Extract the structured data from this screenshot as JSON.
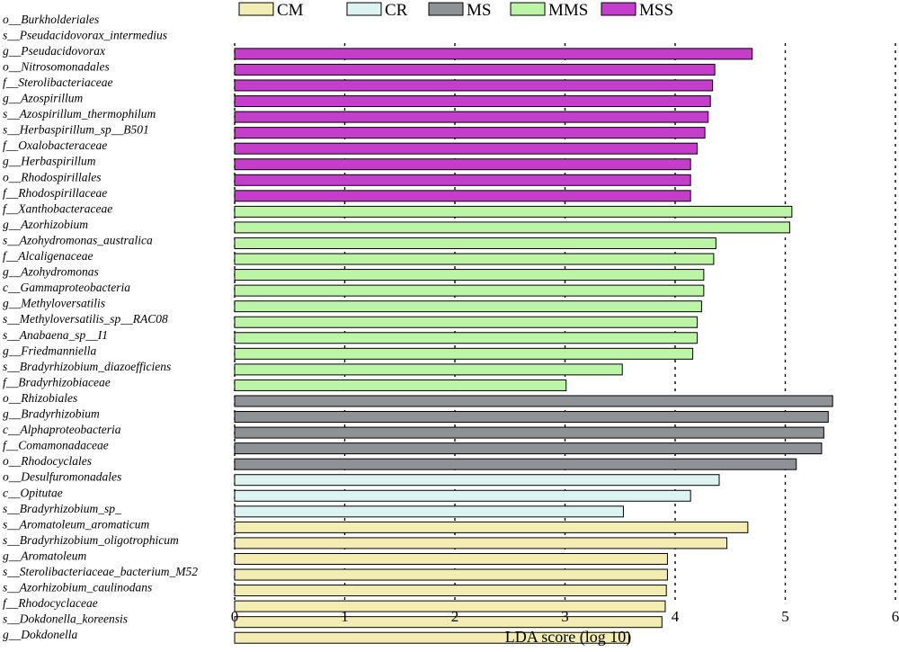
{
  "chart_data": {
    "type": "bar",
    "orientation": "horizontal",
    "xlabel": "LDA score (log 10)",
    "xlim": [
      0,
      6
    ],
    "xticks": [
      "0",
      "1",
      "2",
      "3",
      "4",
      "5",
      "6"
    ],
    "grid": "dashed vertical lines at each x tick",
    "legend_position": "top-center",
    "legend": [
      {
        "name": "CM",
        "color": "#f2eeb3"
      },
      {
        "name": "CR",
        "color": "#dcf3f2"
      },
      {
        "name": "MS",
        "color": "#8f9295"
      },
      {
        "name": "MMS",
        "color": "#bdf5a6"
      },
      {
        "name": "MSS",
        "color": "#c43ecb"
      }
    ],
    "rows": [
      {
        "label": "o__Burkholderiales",
        "value": null,
        "group": "MSS"
      },
      {
        "label": "s__Pseudacidovorax_intermedius",
        "value": null,
        "group": "MSS"
      },
      {
        "label": "g__Pseudacidovorax",
        "value": 4.7,
        "group": "MSS"
      },
      {
        "label": "o__Nitrosomonadales",
        "value": 4.36,
        "group": "MSS"
      },
      {
        "label": "f__Sterolibacteriaceae",
        "value": 4.34,
        "group": "MSS"
      },
      {
        "label": "g__Azospirillum",
        "value": 4.32,
        "group": "MSS"
      },
      {
        "label": "s__Azospirillum_thermophilum",
        "value": 4.3,
        "group": "MSS"
      },
      {
        "label": "s__Herbaspirillum_sp__B501",
        "value": 4.27,
        "group": "MSS"
      },
      {
        "label": "f__Oxalobacteraceae",
        "value": 4.2,
        "group": "MSS"
      },
      {
        "label": "g__Herbaspirillum",
        "value": 4.14,
        "group": "MSS"
      },
      {
        "label": "o__Rhodospirillales",
        "value": 4.14,
        "group": "MSS"
      },
      {
        "label": "f__Rhodospirillaceae",
        "value": 4.14,
        "group": "MSS"
      },
      {
        "label": "f__Xanthobacteraceae",
        "value": 5.06,
        "group": "MMS"
      },
      {
        "label": "g__Azorhizobium",
        "value": 5.04,
        "group": "MMS"
      },
      {
        "label": "s__Azohydromonas_australica",
        "value": 4.37,
        "group": "MMS"
      },
      {
        "label": "f__Alcaligenaceae",
        "value": 4.35,
        "group": "MMS"
      },
      {
        "label": "g__Azohydromonas",
        "value": 4.26,
        "group": "MMS"
      },
      {
        "label": "c__Gammaproteobacteria",
        "value": 4.26,
        "group": "MMS"
      },
      {
        "label": "g__Methyloversatilis",
        "value": 4.24,
        "group": "MMS"
      },
      {
        "label": "s__Methyloversatilis_sp__RAC08",
        "value": 4.2,
        "group": "MMS"
      },
      {
        "label": "s__Anabaena_sp__I1",
        "value": 4.2,
        "group": "MMS"
      },
      {
        "label": "g__Friedmanniella",
        "value": 4.16,
        "group": "MMS"
      },
      {
        "label": "s__Bradyrhizobium_diazoefficiens",
        "value": 3.52,
        "group": "MMS"
      },
      {
        "label": "f__Bradyrhizobiaceae",
        "value": 3.01,
        "group": "MMS"
      },
      {
        "label": "o__Rhizobiales",
        "value": 5.43,
        "group": "MS"
      },
      {
        "label": "g__Bradyrhizobium",
        "value": 5.39,
        "group": "MS"
      },
      {
        "label": "c__Alphaproteobacteria",
        "value": 5.35,
        "group": "MS"
      },
      {
        "label": "f__Comamonadaceae",
        "value": 5.33,
        "group": "MS"
      },
      {
        "label": "o__Rhodocyclales",
        "value": 5.1,
        "group": "MS"
      },
      {
        "label": "o__Desulfuromonadales",
        "value": 4.4,
        "group": "CR"
      },
      {
        "label": "c__Opitutae",
        "value": 4.14,
        "group": "CR"
      },
      {
        "label": "s__Bradyrhizobium_sp_",
        "value": 3.53,
        "group": "CR"
      },
      {
        "label": "s__Aromatoleum_aromaticum",
        "value": 4.66,
        "group": "CM"
      },
      {
        "label": "s__Bradyrhizobium_oligotrophicum",
        "value": 4.47,
        "group": "CM"
      },
      {
        "label": "g__Aromatoleum",
        "value": 3.93,
        "group": "CM"
      },
      {
        "label": "s__Sterolibacteriaceae_bacterium_M52",
        "value": 3.93,
        "group": "CM"
      },
      {
        "label": "s__Azorhizobium_caulinodans",
        "value": 3.92,
        "group": "CM"
      },
      {
        "label": "f__Rhodocyclaceae",
        "value": 3.91,
        "group": "CM"
      },
      {
        "label": "s__Dokdonella_koreensis",
        "value": 3.88,
        "group": "CM"
      },
      {
        "label": "g__Dokdonella",
        "value": 3.58,
        "group": "CM"
      }
    ]
  }
}
